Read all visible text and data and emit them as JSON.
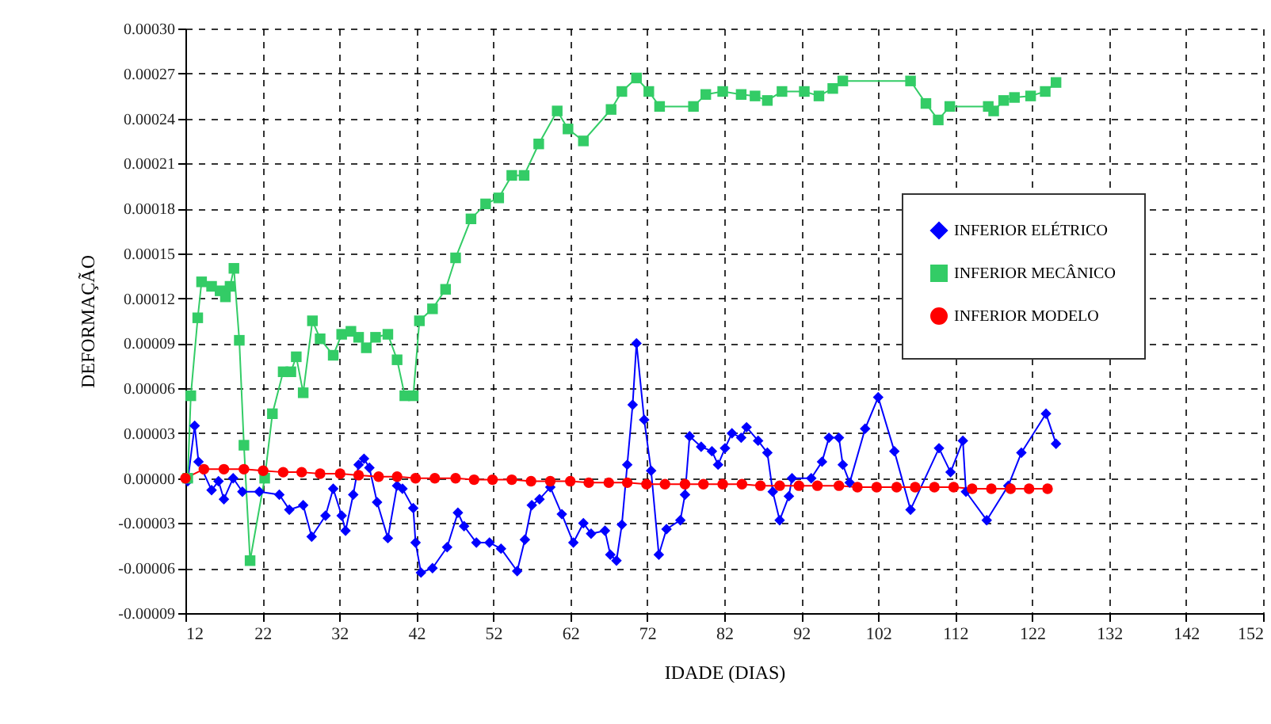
{
  "chart_data": {
    "type": "line",
    "xlabel": "IDADE (DIAS)",
    "ylabel": "DEFORMAÇÃO",
    "xlim": [
      12,
      152
    ],
    "xticks": [
      12,
      22,
      32,
      42,
      52,
      62,
      72,
      82,
      92,
      102,
      112,
      122,
      132,
      142,
      152
    ],
    "ylim": [
      -9e-05,
      0.0003
    ],
    "yticks": [
      {
        "value": -9e-05,
        "label": "-0.00009"
      },
      {
        "value": -6e-05,
        "label": "-0.00006"
      },
      {
        "value": -3e-05,
        "label": "-0.00003"
      },
      {
        "value": 0,
        "label": "0.00000"
      },
      {
        "value": 3e-05,
        "label": "0.00003"
      },
      {
        "value": 6e-05,
        "label": "0.00006"
      },
      {
        "value": 9e-05,
        "label": "0.00009"
      },
      {
        "value": 0.00012,
        "label": "0.00012"
      },
      {
        "value": 0.00015,
        "label": "0.00015"
      },
      {
        "value": 0.00018,
        "label": "0.00018"
      },
      {
        "value": 0.00021,
        "label": "0.00021"
      },
      {
        "value": 0.00024,
        "label": "0.00024"
      },
      {
        "value": 0.00027,
        "label": "0.00027"
      },
      {
        "value": 0.0003,
        "label": "0.00030"
      }
    ],
    "grid": true,
    "legend": "right",
    "line_style": "solid",
    "series": [
      {
        "name": "INFERIOR ELÉTRICO",
        "color": "#0000ff",
        "marker": "diamond",
        "x": [
          12.3,
          13.2,
          13.7,
          15.4,
          16.3,
          17.0,
          18.2,
          19.4,
          21.6,
          24.2,
          25.5,
          27.3,
          28.4,
          30.2,
          31.2,
          32.3,
          32.8,
          33.8,
          34.5,
          35.2,
          35.9,
          36.9,
          38.3,
          39.5,
          40.2,
          41.6,
          41.9,
          42.6,
          44.1,
          46.0,
          47.4,
          48.2,
          49.8,
          51.5,
          53.0,
          55.1,
          56.1,
          57.0,
          58.0,
          59.4,
          60.9,
          62.4,
          63.7,
          64.7,
          66.5,
          67.2,
          68.0,
          68.7,
          69.4,
          70.1,
          70.6,
          71.6,
          72.5,
          73.5,
          74.5,
          76.3,
          76.9,
          77.5,
          79.0,
          80.4,
          81.2,
          82.1,
          83.0,
          84.2,
          84.9,
          86.4,
          87.6,
          88.3,
          89.2,
          90.4,
          90.8,
          93.3,
          94.7,
          95.6,
          96.9,
          97.4,
          98.3,
          100.3,
          102.0,
          104.1,
          106.2,
          109.9,
          111.4,
          113.0,
          113.4,
          116.1,
          118.9,
          120.6,
          123.8,
          125.1
        ],
        "values": [
          -2e-06,
          3.5e-05,
          1.1e-05,
          -8e-06,
          -2e-06,
          -1.4e-05,
          0,
          -9e-06,
          -9e-06,
          -1.1e-05,
          -2.1e-05,
          -1.8e-05,
          -3.9e-05,
          -2.5e-05,
          -7e-06,
          -2.5e-05,
          -3.5e-05,
          -1.1e-05,
          9e-06,
          1.3e-05,
          7e-06,
          -1.6e-05,
          -4e-05,
          -5e-06,
          -7e-06,
          -2e-05,
          -4.3e-05,
          -6.3e-05,
          -6e-05,
          -4.6e-05,
          -2.3e-05,
          -3.2e-05,
          -4.3e-05,
          -4.3e-05,
          -4.7e-05,
          -6.2e-05,
          -4.1e-05,
          -1.8e-05,
          -1.4e-05,
          -6e-06,
          -2.4e-05,
          -4.3e-05,
          -3e-05,
          -3.7e-05,
          -3.5e-05,
          -5.1e-05,
          -5.5e-05,
          -3.1e-05,
          9e-06,
          4.9e-05,
          9e-05,
          3.9e-05,
          5e-06,
          -5.1e-05,
          -3.4e-05,
          -2.8e-05,
          -1.1e-05,
          2.8e-05,
          2.1e-05,
          1.8e-05,
          9e-06,
          2e-05,
          3e-05,
          2.7e-05,
          3.4e-05,
          2.5e-05,
          1.7e-05,
          -9e-06,
          -2.8e-05,
          -1.2e-05,
          0,
          0,
          1.1e-05,
          2.7e-05,
          2.7e-05,
          9e-06,
          -3e-06,
          3.3e-05,
          5.4e-05,
          1.8e-05,
          -2.1e-05,
          2e-05,
          4e-06,
          2.5e-05,
          -9e-06,
          -2.8e-05,
          -5e-06,
          1.7e-05,
          4.3e-05,
          2.3e-05
        ]
      },
      {
        "name": "INFERIOR MECÂNICO",
        "color": "#33cc66",
        "marker": "square",
        "x": [
          12.3,
          12.7,
          13.6,
          14.1,
          15.4,
          16.5,
          17.2,
          17.8,
          18.3,
          19.0,
          19.6,
          20.4,
          22.3,
          23.3,
          24.7,
          25.7,
          26.4,
          27.3,
          28.5,
          29.5,
          31.2,
          32.3,
          33.5,
          34.5,
          35.5,
          36.7,
          38.3,
          39.5,
          40.5,
          41.6,
          42.4,
          44.1,
          45.8,
          47.1,
          49.1,
          51.0,
          52.7,
          54.4,
          56.0,
          57.9,
          60.3,
          61.7,
          63.7,
          67.3,
          68.7,
          70.6,
          72.2,
          73.6,
          78.0,
          79.6,
          81.8,
          84.2,
          86.0,
          87.6,
          89.5,
          92.4,
          94.3,
          96.1,
          97.4,
          106.2,
          108.2,
          109.8,
          111.3,
          116.3,
          117.0,
          118.3,
          119.7,
          121.8,
          123.7,
          125.1
        ],
        "values": [
          0,
          5.5e-05,
          0.000107,
          0.000131,
          0.000128,
          0.000125,
          0.000121,
          0.000128,
          0.00014,
          9.2e-05,
          2.2e-05,
          -5.5e-05,
          0,
          4.3e-05,
          7.1e-05,
          7.1e-05,
          8.1e-05,
          5.7e-05,
          0.000105,
          9.3e-05,
          8.2e-05,
          9.6e-05,
          9.8e-05,
          9.4e-05,
          8.7e-05,
          9.4e-05,
          9.6e-05,
          7.9e-05,
          5.5e-05,
          5.5e-05,
          0.000105,
          0.000113,
          0.000126,
          0.000147,
          0.000173,
          0.000183,
          0.000187,
          0.000202,
          0.000202,
          0.000223,
          0.000245,
          0.000233,
          0.000225,
          0.000246,
          0.000258,
          0.000267,
          0.000258,
          0.000248,
          0.000248,
          0.000256,
          0.000258,
          0.000256,
          0.000255,
          0.000252,
          0.000258,
          0.000258,
          0.000255,
          0.00026,
          0.000265,
          0.000265,
          0.00025,
          0.000239,
          0.000248,
          0.000248,
          0.000245,
          0.000252,
          0.000254,
          0.000255,
          0.000258,
          0.000264
        ]
      },
      {
        "name": "INFERIOR MODELO",
        "color": "#ff0000",
        "marker": "circle",
        "x": [
          12.0,
          14.4,
          17.0,
          19.6,
          22.1,
          24.7,
          27.1,
          29.5,
          32.1,
          34.5,
          37.1,
          39.5,
          41.9,
          44.4,
          47.1,
          49.5,
          51.9,
          54.4,
          56.9,
          59.4,
          62.0,
          64.4,
          67.0,
          69.4,
          71.9,
          74.3,
          76.9,
          79.3,
          81.8,
          84.3,
          86.7,
          89.2,
          91.7,
          94.1,
          96.9,
          99.3,
          101.8,
          104.4,
          106.8,
          109.3,
          111.8,
          114.2,
          116.7,
          119.2,
          121.6,
          124.0
        ],
        "values": [
          0,
          6e-06,
          6e-06,
          6e-06,
          5e-06,
          4e-06,
          4e-06,
          3e-06,
          3e-06,
          2e-06,
          1e-06,
          1e-06,
          0,
          0,
          0,
          -1e-06,
          -1e-06,
          -1e-06,
          -2e-06,
          -2e-06,
          -2e-06,
          -3e-06,
          -3e-06,
          -3e-06,
          -4e-06,
          -4e-06,
          -4e-06,
          -4e-06,
          -4e-06,
          -4e-06,
          -5e-06,
          -5e-06,
          -5e-06,
          -5e-06,
          -5e-06,
          -6e-06,
          -6e-06,
          -6e-06,
          -6e-06,
          -6e-06,
          -6e-06,
          -7e-06,
          -7e-06,
          -7e-06,
          -7e-06,
          -7e-06
        ]
      }
    ]
  }
}
